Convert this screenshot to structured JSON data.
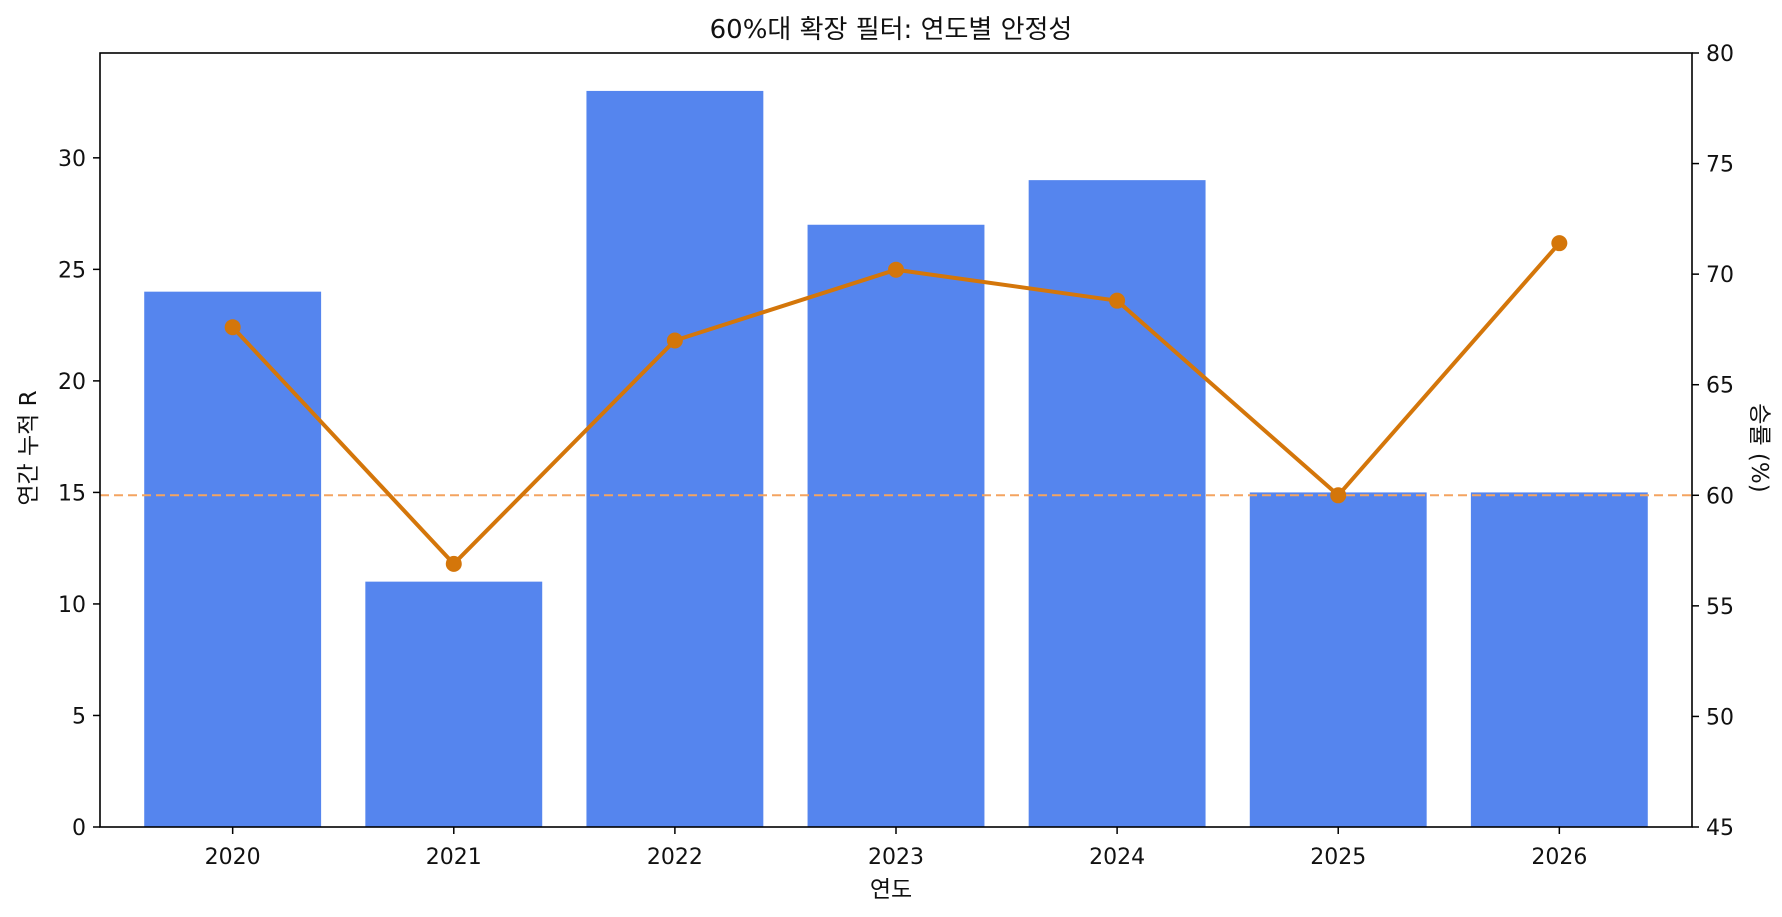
{
  "chart_data": {
    "type": "bar",
    "title": "60%대 확장 필터: 연도별 안정성",
    "xlabel": "연도",
    "ylabel": "연간 누적 R",
    "y2label": "승률 (%)",
    "categories": [
      "2020",
      "2021",
      "2022",
      "2023",
      "2024",
      "2025",
      "2026"
    ],
    "series": [
      {
        "values": [
          24,
          11,
          33,
          27,
          29,
          15,
          15
        ],
        "axis": "left",
        "kind": "bar",
        "color": "#5585ee"
      },
      {
        "values": [
          67.6,
          56.9,
          67.0,
          70.2,
          68.8,
          60.0,
          71.4
        ],
        "axis": "right",
        "kind": "line",
        "color": "#d4760a"
      }
    ],
    "ylim": [
      0,
      34.7
    ],
    "y2lim": [
      45,
      80
    ],
    "yticks": [
      0,
      5,
      10,
      15,
      20,
      25,
      30
    ],
    "y2ticks": [
      45,
      50,
      55,
      60,
      65,
      70,
      75,
      80
    ],
    "reference_line": {
      "axis": "right",
      "value": 60,
      "style": "dashed",
      "color": "#f4a460"
    },
    "grid": false
  }
}
